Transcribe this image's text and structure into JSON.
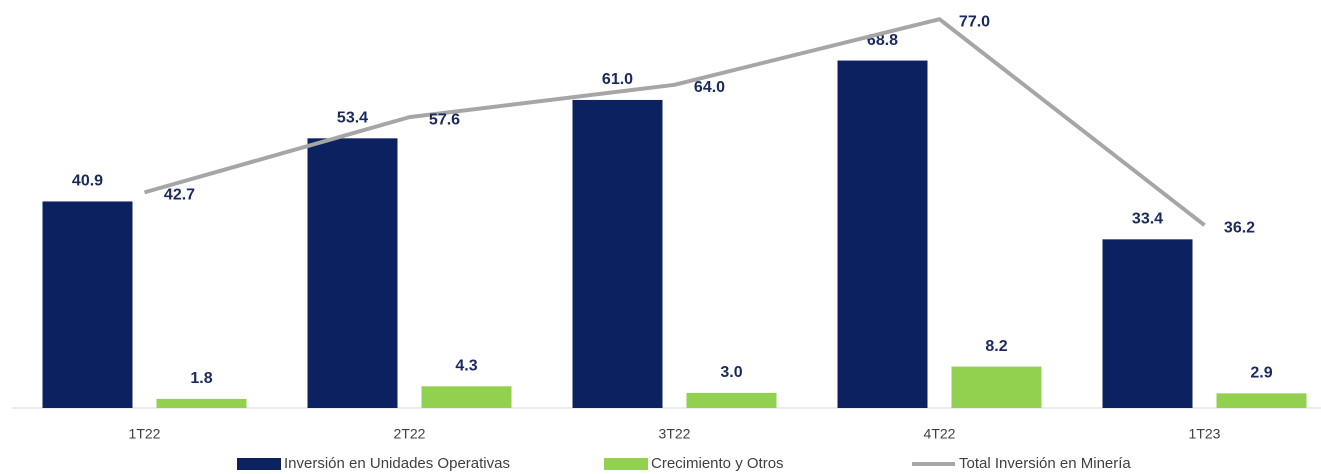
{
  "chart_data": {
    "type": "bar",
    "categories": [
      "1T22",
      "2T22",
      "3T22",
      "4T22",
      "1T23"
    ],
    "series": [
      {
        "name": "Inversión en Unidades Operativas",
        "color": "#0c2160",
        "type": "bar",
        "values": [
          40.9,
          53.4,
          61.0,
          68.8,
          33.4
        ],
        "value_labels": [
          "40.9",
          "53.4",
          "61.0",
          "68.8",
          "33.4"
        ]
      },
      {
        "name": "Crecimiento y Otros",
        "color": "#92d050",
        "type": "bar",
        "values": [
          1.8,
          4.3,
          3.0,
          8.2,
          2.9
        ],
        "value_labels": [
          "1.8",
          "4.3",
          "3.0",
          "8.2",
          "2.9"
        ]
      },
      {
        "name": "Total Inversión en Minería",
        "color": "#a6a6a6",
        "type": "line",
        "values": [
          42.7,
          57.6,
          64.0,
          77.0,
          36.2
        ],
        "value_labels": [
          "42.7",
          "57.6",
          "64.0",
          "77.0",
          "36.2"
        ]
      }
    ]
  }
}
